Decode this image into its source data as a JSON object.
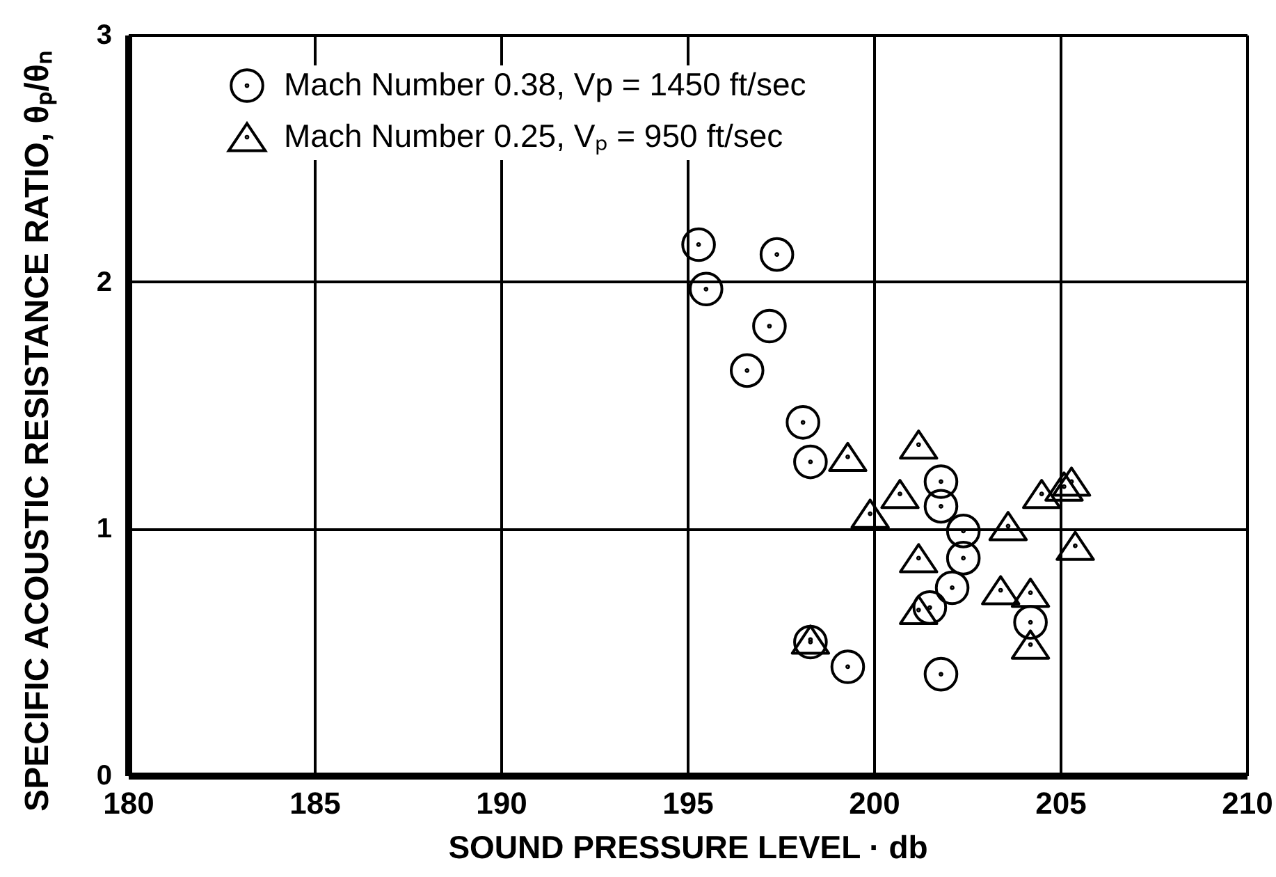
{
  "chart_data": {
    "type": "scatter",
    "xlabel": "SOUND PRESSURE LEVEL · db",
    "ylabel": "SPECIFIC ACOUSTIC RESISTANCE RATIO, θₚ/θₙ",
    "xlim": [
      180,
      210
    ],
    "ylim": [
      0,
      3
    ],
    "xticks": [
      180,
      185,
      190,
      195,
      200,
      205,
      210
    ],
    "yticks": [
      0,
      1,
      2,
      3
    ],
    "grid": true,
    "legend": "top left",
    "series": [
      {
        "name": "Mach Number 0.38, Vp = 1450 ft/sec",
        "color": "#000000",
        "marker": "circle",
        "x": [
          195.3,
          197.4,
          195.5,
          197.2,
          196.6,
          198.1,
          198.3,
          201.8,
          201.8,
          202.4,
          202.4,
          202.1,
          201.5,
          204.2,
          198.3,
          199.3,
          201.8
        ],
        "values": [
          2.15,
          2.11,
          1.97,
          1.82,
          1.64,
          1.43,
          1.27,
          1.19,
          1.09,
          0.99,
          0.88,
          0.76,
          0.68,
          0.62,
          0.54,
          0.44,
          0.41
        ]
      },
      {
        "name": "Mach Number 0.25, Vₚ = 950 ft/sec",
        "color": "#000000",
        "marker": "triangle",
        "x": [
          199.3,
          201.2,
          200.7,
          199.9,
          203.6,
          204.5,
          205.1,
          205.3,
          205.4,
          201.2,
          201.2,
          203.4,
          204.2,
          204.2,
          198.3
        ],
        "values": [
          1.29,
          1.34,
          1.14,
          1.06,
          1.01,
          1.14,
          1.17,
          1.19,
          0.93,
          0.88,
          0.67,
          0.75,
          0.74,
          0.53,
          0.55
        ]
      }
    ]
  }
}
